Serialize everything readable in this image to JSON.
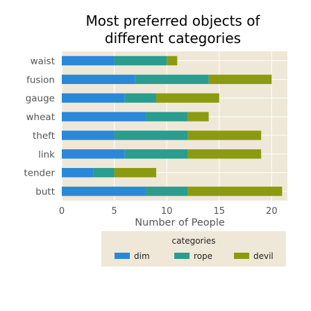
{
  "chart_data": {
    "type": "bar",
    "orientation": "horizontal",
    "stacked": true,
    "title": "Most preferred objects of different categories",
    "title_lines": [
      "Most preferred objects of",
      "different categories"
    ],
    "xlabel": "Number of People",
    "ylabel": "",
    "xlim": [
      0,
      21.5
    ],
    "xticks": [
      0,
      5,
      10,
      15,
      20
    ],
    "grid": true,
    "legend": {
      "title": "categories",
      "placement": "bottom"
    },
    "categories": [
      "waist",
      "fusion",
      "gauge",
      "wheat",
      "theft",
      "link",
      "tender",
      "butt"
    ],
    "series": [
      {
        "name": "dim",
        "color": "#2b88d8",
        "values": [
          5,
          7,
          6,
          8,
          5,
          6,
          3,
          8
        ]
      },
      {
        "name": "rope",
        "color": "#2a9d8f",
        "values": [
          5,
          7,
          3,
          4,
          7,
          6,
          2,
          4
        ]
      },
      {
        "name": "devil",
        "color": "#8c9a12",
        "values": [
          1,
          6,
          6,
          2,
          7,
          7,
          4,
          9
        ]
      }
    ],
    "background": "#efe8d8"
  }
}
